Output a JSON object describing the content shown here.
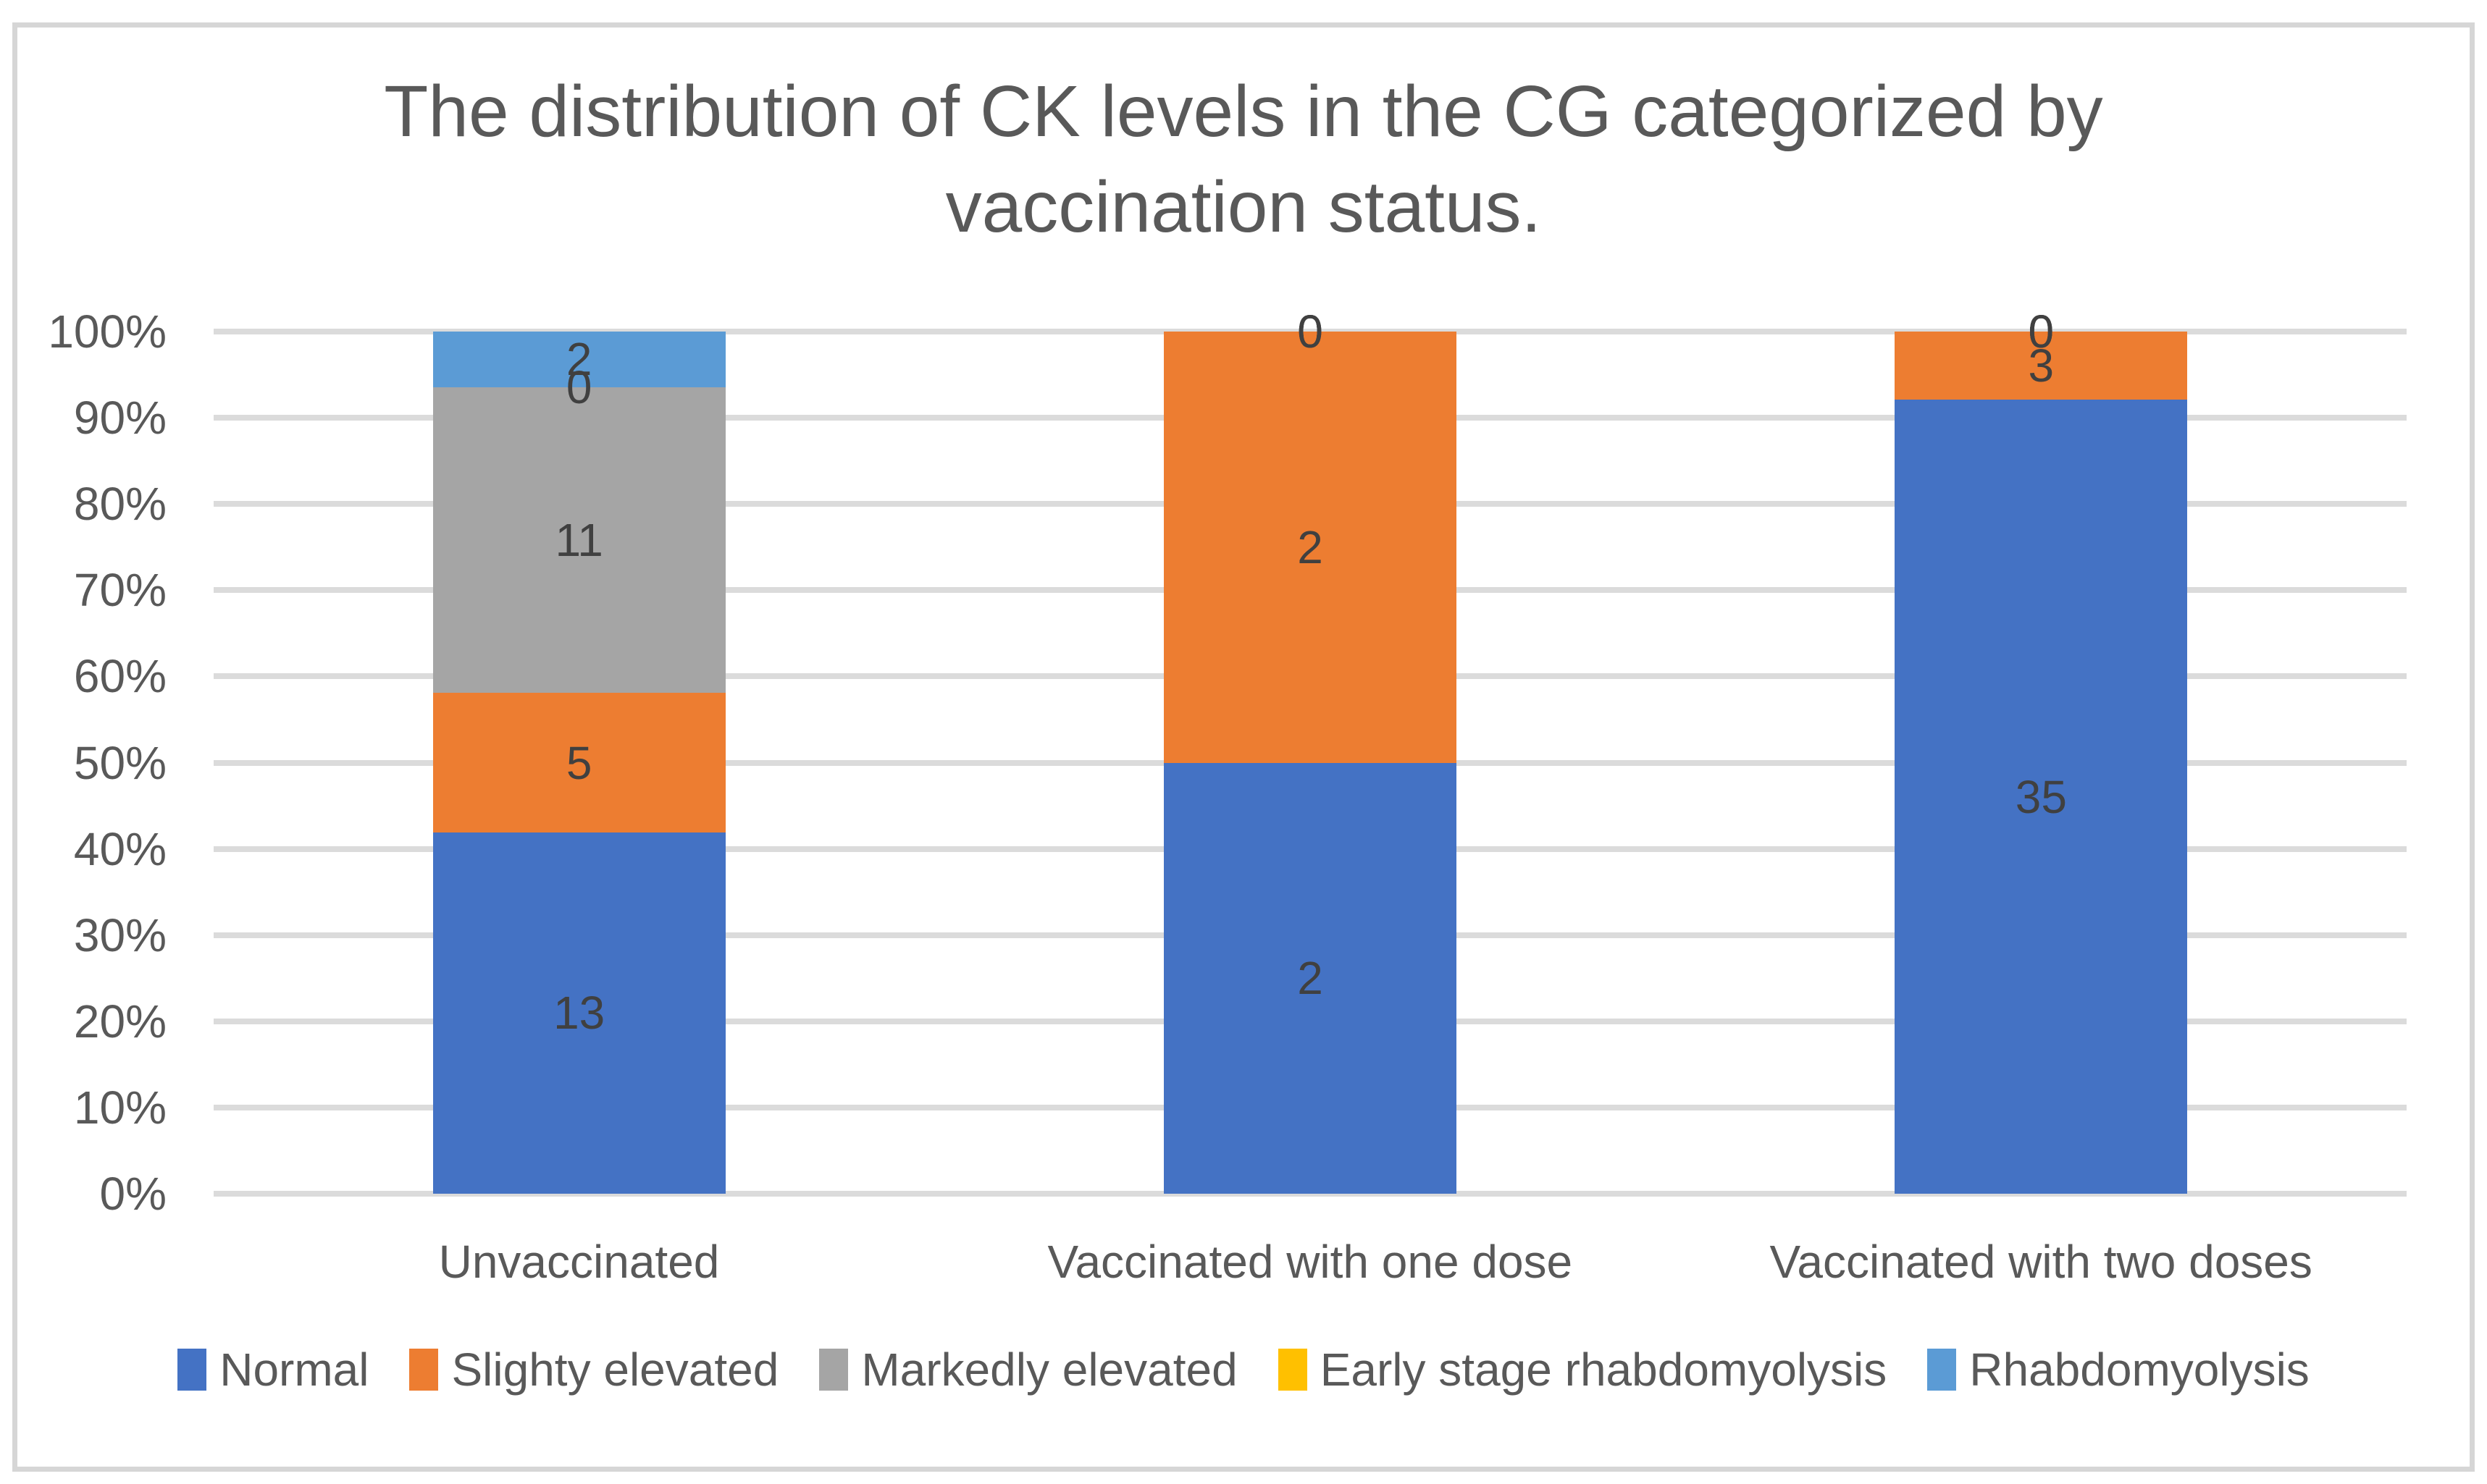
{
  "chart_data": {
    "type": "bar",
    "subtype": "stacked-100-percent-column",
    "title": "The distribution of CK levels in the CG categorized by vaccination status.",
    "title_lines": [
      "The distribution of CK levels in the CG categorized by",
      "vaccination status."
    ],
    "categories": [
      "Unvaccinated",
      "Vaccinated with one dose",
      "Vaccinated with two doses"
    ],
    "series": [
      {
        "name": "Normal",
        "color": "#4472C4",
        "values": [
          13,
          2,
          35
        ]
      },
      {
        "name": "Slighty elevated",
        "color": "#ED7D31",
        "values": [
          5,
          2,
          3
        ]
      },
      {
        "name": "Markedly elevated",
        "color": "#A5A5A5",
        "values": [
          11,
          0,
          0
        ]
      },
      {
        "name": "Early stage rhabdomyolysis",
        "color": "#FFC000",
        "values": [
          0,
          0,
          0
        ]
      },
      {
        "name": "Rhabdomyolysis",
        "color": "#5B9BD5",
        "values": [
          2,
          0,
          0
        ]
      }
    ],
    "y_axis": {
      "ticks": [
        "0%",
        "10%",
        "20%",
        "30%",
        "40%",
        "50%",
        "60%",
        "70%",
        "80%",
        "90%",
        "100%"
      ],
      "min": "0%",
      "max": "100%"
    },
    "data_labels_shown": true,
    "grid": "horizontal",
    "legend_position": "bottom"
  },
  "colors": {
    "title_text": "#595959",
    "axis_text": "#595959",
    "data_label_text": "#404040",
    "gridline": "#DBDBDB",
    "frame_border": "#D6D6D6",
    "background": "#FFFFFF"
  }
}
